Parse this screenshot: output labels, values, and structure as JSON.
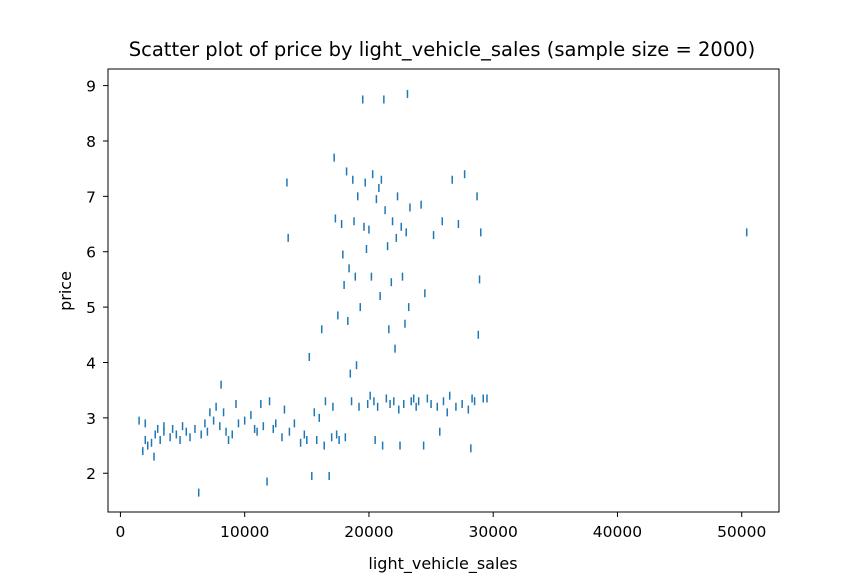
{
  "chart_data": {
    "type": "scatter",
    "title": "Scatter plot of price by light_vehicle_sales (sample size = 2000)",
    "xlabel": "light_vehicle_sales",
    "ylabel": "price",
    "xlim": [
      -1000,
      53000
    ],
    "ylim": [
      1.3,
      9.3
    ],
    "xticks": [
      0,
      10000,
      20000,
      30000,
      40000,
      50000
    ],
    "yticks": [
      2,
      3,
      4,
      5,
      6,
      7,
      8,
      9
    ],
    "grid": false,
    "marker": "vertical tick",
    "color": "#1f77b4",
    "points": [
      [
        1500,
        2.95
      ],
      [
        1800,
        2.4
      ],
      [
        2000,
        2.6
      ],
      [
        2000,
        2.9
      ],
      [
        2200,
        2.5
      ],
      [
        2500,
        2.55
      ],
      [
        2700,
        2.3
      ],
      [
        2800,
        2.7
      ],
      [
        3000,
        2.8
      ],
      [
        3200,
        2.6
      ],
      [
        3500,
        2.75
      ],
      [
        3500,
        2.85
      ],
      [
        4000,
        2.65
      ],
      [
        4200,
        2.8
      ],
      [
        4500,
        2.7
      ],
      [
        4800,
        2.6
      ],
      [
        5000,
        2.85
      ],
      [
        5300,
        2.75
      ],
      [
        5600,
        2.65
      ],
      [
        6000,
        2.8
      ],
      [
        6300,
        1.65
      ],
      [
        6500,
        2.7
      ],
      [
        6800,
        2.9
      ],
      [
        7000,
        2.75
      ],
      [
        7200,
        3.1
      ],
      [
        7500,
        2.95
      ],
      [
        7700,
        3.2
      ],
      [
        8000,
        2.85
      ],
      [
        8100,
        3.6
      ],
      [
        8300,
        3.1
      ],
      [
        8500,
        2.75
      ],
      [
        8700,
        2.6
      ],
      [
        9000,
        2.7
      ],
      [
        9300,
        3.25
      ],
      [
        9500,
        2.9
      ],
      [
        10000,
        2.95
      ],
      [
        10500,
        3.05
      ],
      [
        10800,
        2.8
      ],
      [
        11000,
        2.75
      ],
      [
        11300,
        3.25
      ],
      [
        11500,
        2.85
      ],
      [
        11800,
        1.85
      ],
      [
        12000,
        3.3
      ],
      [
        12300,
        2.8
      ],
      [
        12500,
        2.9
      ],
      [
        13000,
        2.65
      ],
      [
        13200,
        3.15
      ],
      [
        13400,
        7.25
      ],
      [
        13500,
        6.25
      ],
      [
        13600,
        2.75
      ],
      [
        14000,
        2.9
      ],
      [
        14500,
        2.55
      ],
      [
        14800,
        2.7
      ],
      [
        15000,
        2.6
      ],
      [
        15200,
        4.1
      ],
      [
        15400,
        1.95
      ],
      [
        15600,
        3.1
      ],
      [
        15800,
        2.6
      ],
      [
        16000,
        3.0
      ],
      [
        16200,
        4.6
      ],
      [
        16400,
        2.5
      ],
      [
        16500,
        3.3
      ],
      [
        16800,
        1.95
      ],
      [
        17000,
        2.65
      ],
      [
        17100,
        3.2
      ],
      [
        17200,
        7.7
      ],
      [
        17300,
        6.6
      ],
      [
        17400,
        2.7
      ],
      [
        17500,
        4.85
      ],
      [
        17600,
        2.6
      ],
      [
        17800,
        6.5
      ],
      [
        17900,
        5.95
      ],
      [
        18000,
        5.4
      ],
      [
        18100,
        2.65
      ],
      [
        18200,
        7.45
      ],
      [
        18300,
        4.75
      ],
      [
        18400,
        5.7
      ],
      [
        18500,
        3.8
      ],
      [
        18600,
        3.3
      ],
      [
        18700,
        7.3
      ],
      [
        18800,
        6.55
      ],
      [
        18900,
        5.55
      ],
      [
        19000,
        3.95
      ],
      [
        19100,
        7.0
      ],
      [
        19200,
        3.2
      ],
      [
        19300,
        5.0
      ],
      [
        19500,
        8.75
      ],
      [
        19600,
        6.45
      ],
      [
        19700,
        7.25
      ],
      [
        19800,
        6.05
      ],
      [
        19900,
        3.25
      ],
      [
        20000,
        6.4
      ],
      [
        20100,
        3.4
      ],
      [
        20200,
        5.55
      ],
      [
        20300,
        7.4
      ],
      [
        20400,
        3.3
      ],
      [
        20500,
        2.6
      ],
      [
        20600,
        6.95
      ],
      [
        20700,
        3.2
      ],
      [
        20800,
        7.15
      ],
      [
        20900,
        5.2
      ],
      [
        21000,
        7.3
      ],
      [
        21100,
        2.5
      ],
      [
        21200,
        8.75
      ],
      [
        21300,
        6.75
      ],
      [
        21400,
        3.35
      ],
      [
        21500,
        6.1
      ],
      [
        21600,
        4.6
      ],
      [
        21700,
        3.25
      ],
      [
        21800,
        5.45
      ],
      [
        21900,
        6.55
      ],
      [
        22000,
        3.3
      ],
      [
        22100,
        4.25
      ],
      [
        22200,
        6.25
      ],
      [
        22300,
        7.0
      ],
      [
        22400,
        3.15
      ],
      [
        22500,
        2.5
      ],
      [
        22600,
        6.45
      ],
      [
        22700,
        5.55
      ],
      [
        22800,
        3.25
      ],
      [
        22900,
        4.7
      ],
      [
        23000,
        6.35
      ],
      [
        23100,
        8.85
      ],
      [
        23200,
        5.0
      ],
      [
        23300,
        6.8
      ],
      [
        23400,
        3.3
      ],
      [
        23600,
        3.35
      ],
      [
        23800,
        3.2
      ],
      [
        24000,
        3.3
      ],
      [
        24200,
        6.85
      ],
      [
        24400,
        2.5
      ],
      [
        24500,
        5.25
      ],
      [
        24700,
        3.35
      ],
      [
        25000,
        3.25
      ],
      [
        25200,
        6.3
      ],
      [
        25500,
        3.2
      ],
      [
        25700,
        2.75
      ],
      [
        25900,
        6.55
      ],
      [
        26000,
        3.3
      ],
      [
        26300,
        3.1
      ],
      [
        26500,
        3.4
      ],
      [
        26700,
        7.3
      ],
      [
        27000,
        3.2
      ],
      [
        27200,
        6.5
      ],
      [
        27500,
        3.25
      ],
      [
        27700,
        7.4
      ],
      [
        28000,
        3.15
      ],
      [
        28200,
        2.45
      ],
      [
        28300,
        3.35
      ],
      [
        28500,
        3.3
      ],
      [
        28700,
        7.0
      ],
      [
        28800,
        4.5
      ],
      [
        28900,
        5.5
      ],
      [
        29000,
        6.35
      ],
      [
        29200,
        3.35
      ],
      [
        29500,
        3.35
      ],
      [
        50400,
        6.35
      ]
    ]
  }
}
